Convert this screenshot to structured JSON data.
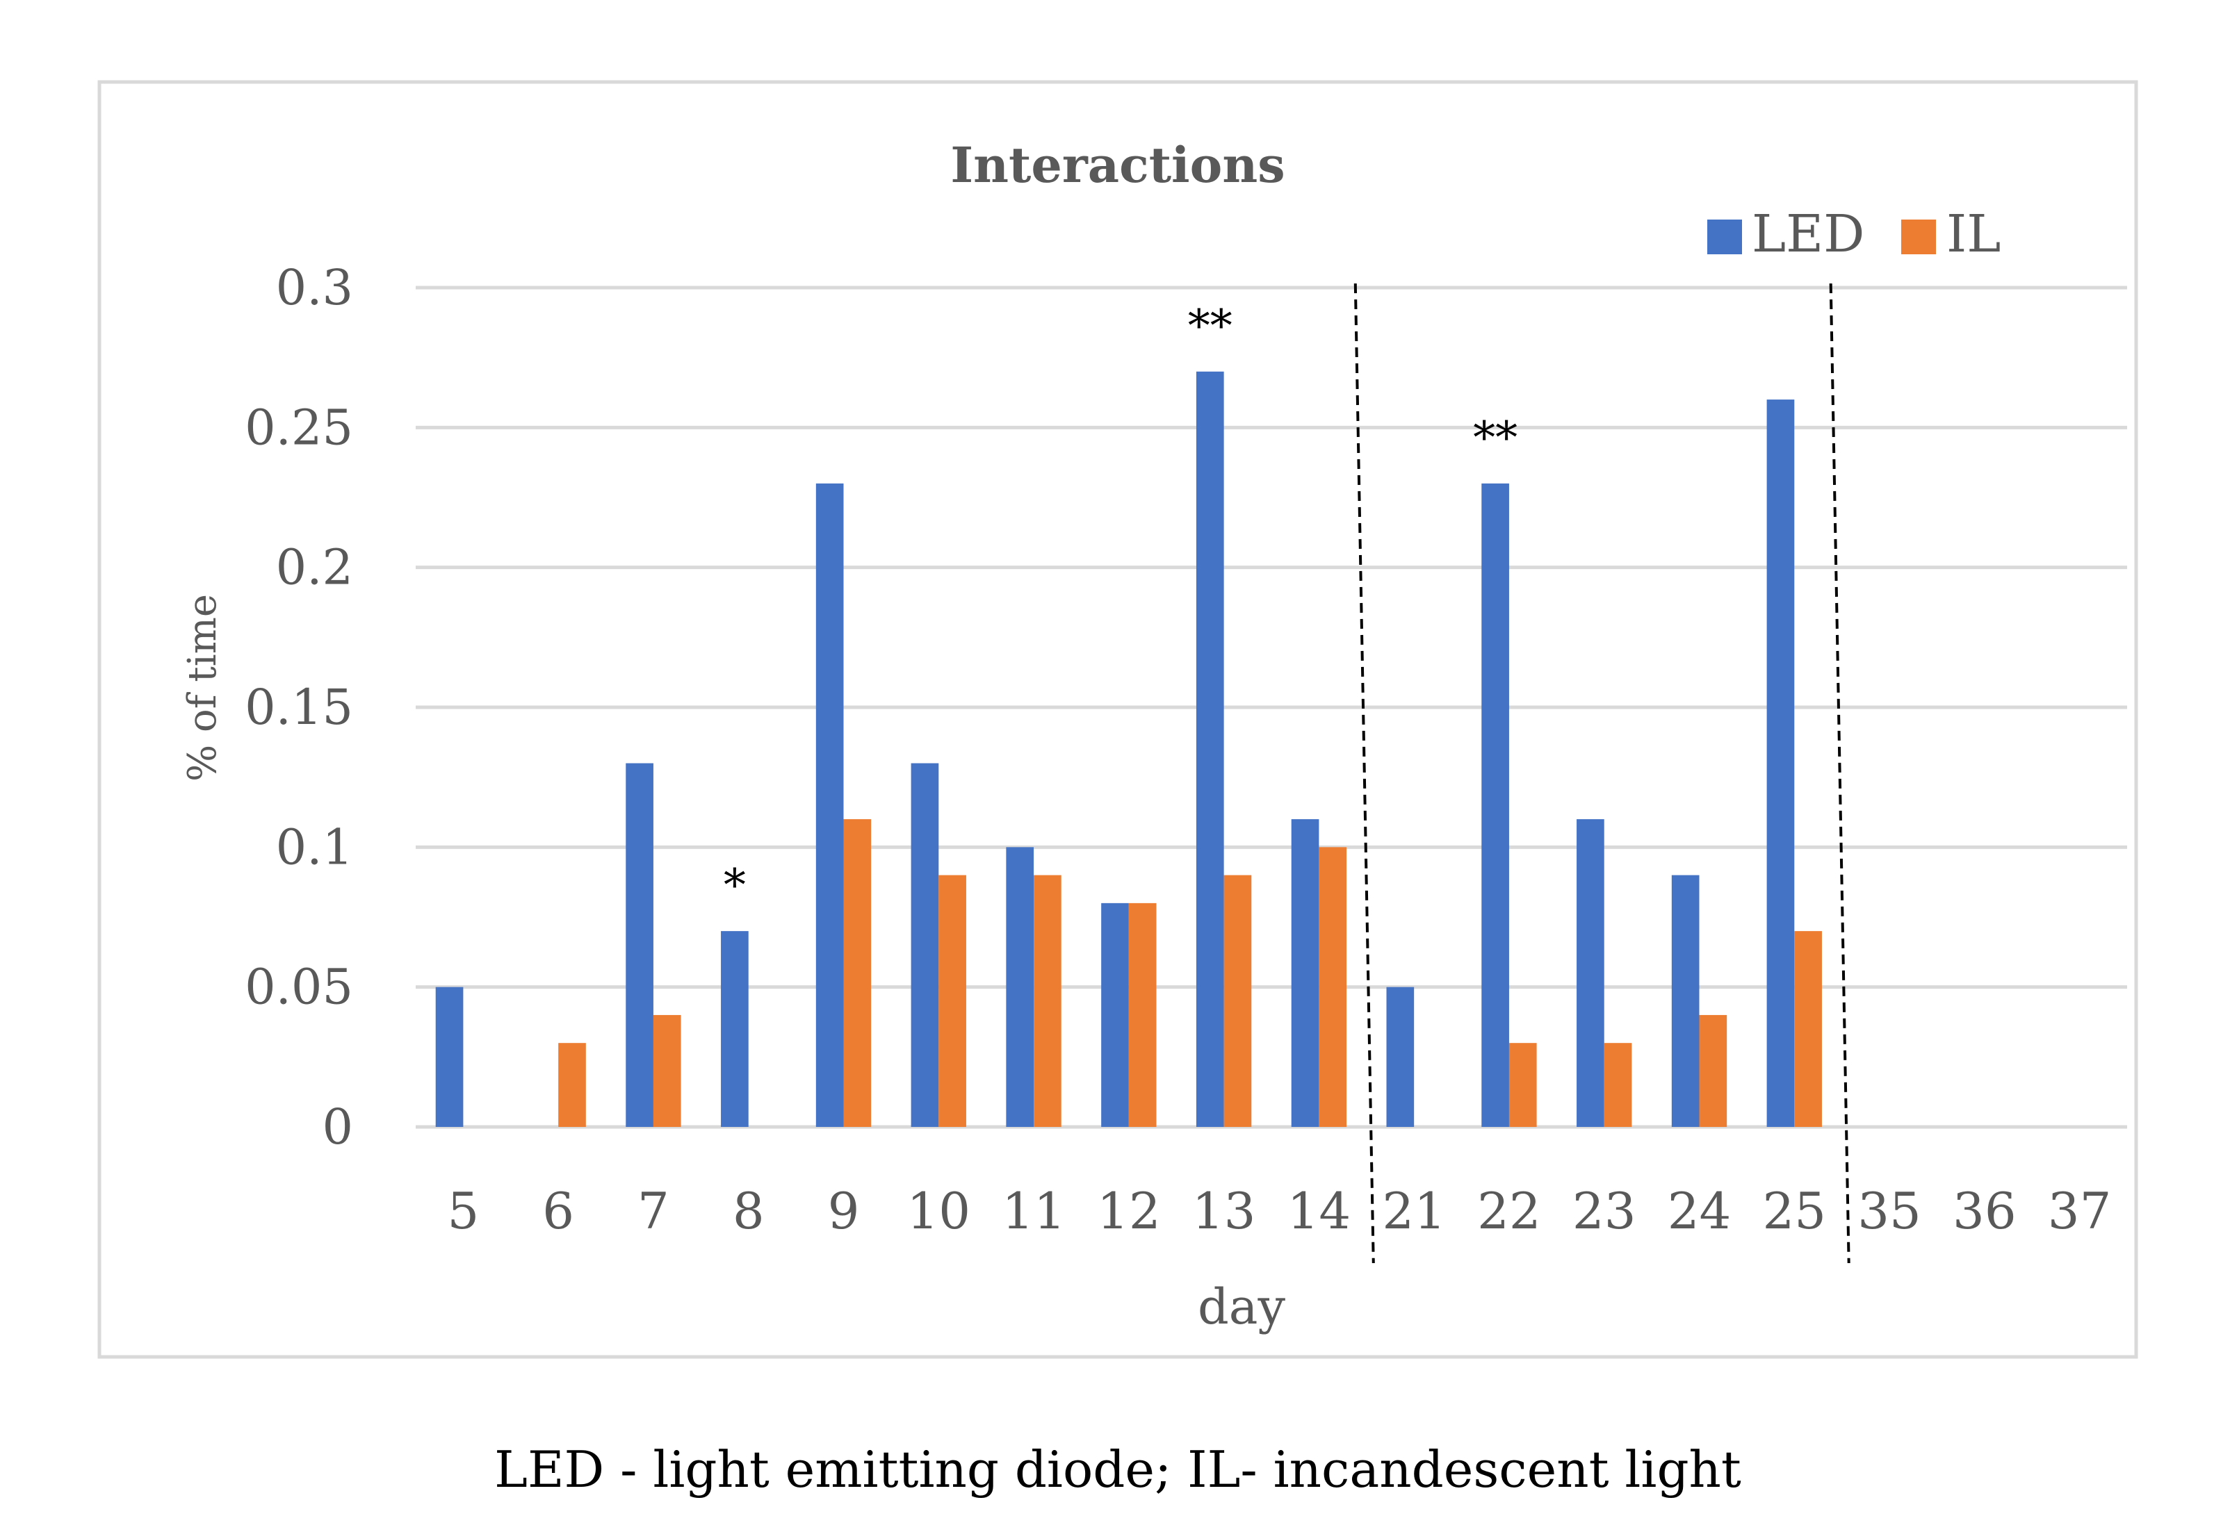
{
  "chart_data": {
    "type": "bar",
    "title": "Interactions",
    "xlabel": "day",
    "ylabel": "% of time",
    "ylim": [
      0,
      0.3
    ],
    "yticks": [
      "0",
      "0.05",
      "0.1",
      "0.15",
      "0.2",
      "0.25",
      "0.3"
    ],
    "ytick_values": [
      0,
      0.05,
      0.1,
      0.15,
      0.2,
      0.25,
      0.3
    ],
    "categories": [
      "5",
      "6",
      "7",
      "8",
      "9",
      "10",
      "11",
      "12",
      "13",
      "14",
      "21",
      "22",
      "23",
      "24",
      "25",
      "35",
      "36",
      "37"
    ],
    "series": [
      {
        "name": "LED",
        "color": "#4472C4",
        "values": [
          0.05,
          0,
          0.13,
          0.07,
          0.23,
          0.13,
          0.1,
          0.08,
          0.27,
          0.11,
          0.05,
          0.23,
          0.11,
          0.09,
          0.26,
          0,
          0,
          0
        ]
      },
      {
        "name": "IL",
        "color": "#ED7D31",
        "values": [
          0,
          0.03,
          0.04,
          0,
          0.11,
          0.09,
          0.09,
          0.08,
          0.09,
          0.1,
          0,
          0.03,
          0.03,
          0.04,
          0.07,
          0,
          0,
          0
        ]
      }
    ],
    "annotations": [
      {
        "text": "*",
        "category": "8",
        "series": "LED"
      },
      {
        "text": "**",
        "category": "13",
        "series": "LED"
      },
      {
        "text": "**",
        "category": "22",
        "series": "LED"
      }
    ],
    "dashed_dividers_after": [
      "14",
      "25"
    ],
    "legend_position": "top-right",
    "grid": true
  },
  "caption": "LED - light emitting diode; IL- incandescent light",
  "colors": {
    "gridline": "#D9D9D9",
    "text": "#595959",
    "frame": "#D9D9D9"
  }
}
